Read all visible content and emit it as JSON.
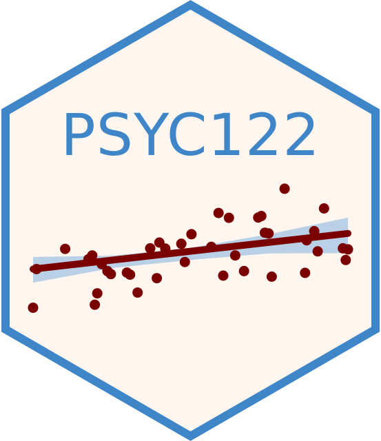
{
  "sticker": {
    "title": "PSYC122",
    "colors": {
      "background": "#fef6ef",
      "border": "#3f86c8",
      "title": "#3f86c8",
      "points": "#7a0000",
      "regression_line": "#7a0000",
      "confidence_band": "#a9c7e3"
    }
  },
  "chart_data": {
    "type": "scatter",
    "title": "",
    "xlabel": "",
    "ylabel": "",
    "xlim": [
      0,
      100
    ],
    "ylim": [
      0,
      100
    ],
    "grid": false,
    "legend": "none",
    "points": [
      {
        "x": 0.0,
        "y": 12.0
      },
      {
        "x": 1.1,
        "y": 37.5
      },
      {
        "x": 10.2,
        "y": 50.8
      },
      {
        "x": 17.6,
        "y": 44.0
      },
      {
        "x": 18.8,
        "y": 46.5
      },
      {
        "x": 19.6,
        "y": 14.0
      },
      {
        "x": 20.4,
        "y": 21.5
      },
      {
        "x": 21.8,
        "y": 40.8
      },
      {
        "x": 23.6,
        "y": 36.2
      },
      {
        "x": 24.7,
        "y": 34.2
      },
      {
        "x": 29.8,
        "y": 35.2
      },
      {
        "x": 30.8,
        "y": 33.8
      },
      {
        "x": 33.2,
        "y": 22.0
      },
      {
        "x": 37.2,
        "y": 51.2
      },
      {
        "x": 39.3,
        "y": 31.5
      },
      {
        "x": 40.1,
        "y": 55.0
      },
      {
        "x": 42.0,
        "y": 51.0
      },
      {
        "x": 47.1,
        "y": 54.2
      },
      {
        "x": 48.2,
        "y": 42.2
      },
      {
        "x": 50.3,
        "y": 60.5
      },
      {
        "x": 56.6,
        "y": 52.2
      },
      {
        "x": 58.9,
        "y": 74.5
      },
      {
        "x": 60.4,
        "y": 33.2
      },
      {
        "x": 62.2,
        "y": 71.3
      },
      {
        "x": 64.2,
        "y": 46.5
      },
      {
        "x": 67.0,
        "y": 36.2
      },
      {
        "x": 71.5,
        "y": 71.5
      },
      {
        "x": 72.5,
        "y": 72.5
      },
      {
        "x": 73.6,
        "y": 61.5
      },
      {
        "x": 74.8,
        "y": 61.0
      },
      {
        "x": 75.8,
        "y": 32.5
      },
      {
        "x": 79.9,
        "y": 90.5
      },
      {
        "x": 86.4,
        "y": 35.0
      },
      {
        "x": 86.9,
        "y": 56.5
      },
      {
        "x": 89.3,
        "y": 62.5
      },
      {
        "x": 90.4,
        "y": 49.2
      },
      {
        "x": 92.4,
        "y": 77.5
      },
      {
        "x": 98.4,
        "y": 51.2
      },
      {
        "x": 99.3,
        "y": 43.5
      },
      {
        "x": 100.0,
        "y": 50.5
      }
    ],
    "fit": {
      "intercept": 37.5,
      "slope": 0.235
    },
    "band": {
      "upper": [
        {
          "x": 0,
          "y": 45.5
        },
        {
          "x": 25,
          "y": 46.3
        },
        {
          "x": 50,
          "y": 51.5
        },
        {
          "x": 75,
          "y": 60.5
        },
        {
          "x": 100,
          "y": 71.5
        }
      ],
      "lower": [
        {
          "x": 0,
          "y": 28.5
        },
        {
          "x": 25,
          "y": 38.2
        },
        {
          "x": 50,
          "y": 43.5
        },
        {
          "x": 75,
          "y": 47.8
        },
        {
          "x": 100,
          "y": 48.0
        }
      ]
    }
  }
}
